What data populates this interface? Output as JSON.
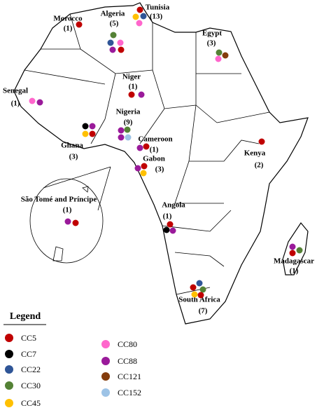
{
  "countries": [
    {
      "name": "Morocco",
      "count": "(1)",
      "isolates": [
        "CC5"
      ]
    },
    {
      "name": "Algeria",
      "count": "(5)",
      "isolates": [
        "CC30",
        "CC22",
        "CC80",
        "CC88",
        "CC5"
      ]
    },
    {
      "name": "Tunisia",
      "count": "(13)",
      "isolates": [
        "CC5",
        "CC45",
        "CC22",
        "CC80"
      ]
    },
    {
      "name": "Egypt",
      "count": "(3)",
      "isolates": [
        "CC30",
        "CC121",
        "CC80"
      ]
    },
    {
      "name": "Niger",
      "count": "(1)",
      "isolates": [
        "CC5",
        "CC88"
      ]
    },
    {
      "name": "Senegal",
      "count": "(1)",
      "isolates": [
        "CC80",
        "CC88"
      ]
    },
    {
      "name": "Nigeria",
      "count": "(9)",
      "isolates": [
        "CC88",
        "CC30",
        "CC88",
        "CC152"
      ]
    },
    {
      "name": "Ghana",
      "count": "(3)",
      "isolates": [
        "CC7",
        "CC88",
        "CC45",
        "CC5"
      ]
    },
    {
      "name": "Cameroon",
      "count": "(1)",
      "isolates": [
        "CC88",
        "CC5"
      ]
    },
    {
      "name": "Gabon",
      "count": "(3)",
      "isolates": [
        "CC88",
        "CC5",
        "CC45"
      ]
    },
    {
      "name": "Kenya",
      "count": "(2)",
      "isolates": [
        "CC5"
      ]
    },
    {
      "name": "São Tomé and Príncipe",
      "count": "(1)",
      "isolates": [
        "CC88",
        "CC5"
      ]
    },
    {
      "name": "Angola",
      "count": "(1)",
      "isolates": [
        "CC5",
        "CC7",
        "CC88"
      ]
    },
    {
      "name": "Madagascar",
      "count": "(1)",
      "isolates": [
        "CC88",
        "CC5",
        "CC30"
      ]
    },
    {
      "name": "South Africa",
      "count": "(7)",
      "isolates": [
        "CC22",
        "CC5",
        "CC30",
        "CC45",
        "CC5"
      ]
    }
  ],
  "legend": {
    "title": "Legend",
    "items": [
      {
        "label": "CC5",
        "color": "#c00000"
      },
      {
        "label": "CC7",
        "color": "#000000"
      },
      {
        "label": "CC22",
        "color": "#2f5597"
      },
      {
        "label": "CC30",
        "color": "#548235"
      },
      {
        "label": "CC45",
        "color": "#ffc000"
      },
      {
        "label": "CC80",
        "color": "#ff66cc"
      },
      {
        "label": "CC88",
        "color": "#9a1a9a"
      },
      {
        "label": "CC121",
        "color": "#843c0c"
      },
      {
        "label": "CC152",
        "color": "#9dc3e6"
      }
    ]
  }
}
